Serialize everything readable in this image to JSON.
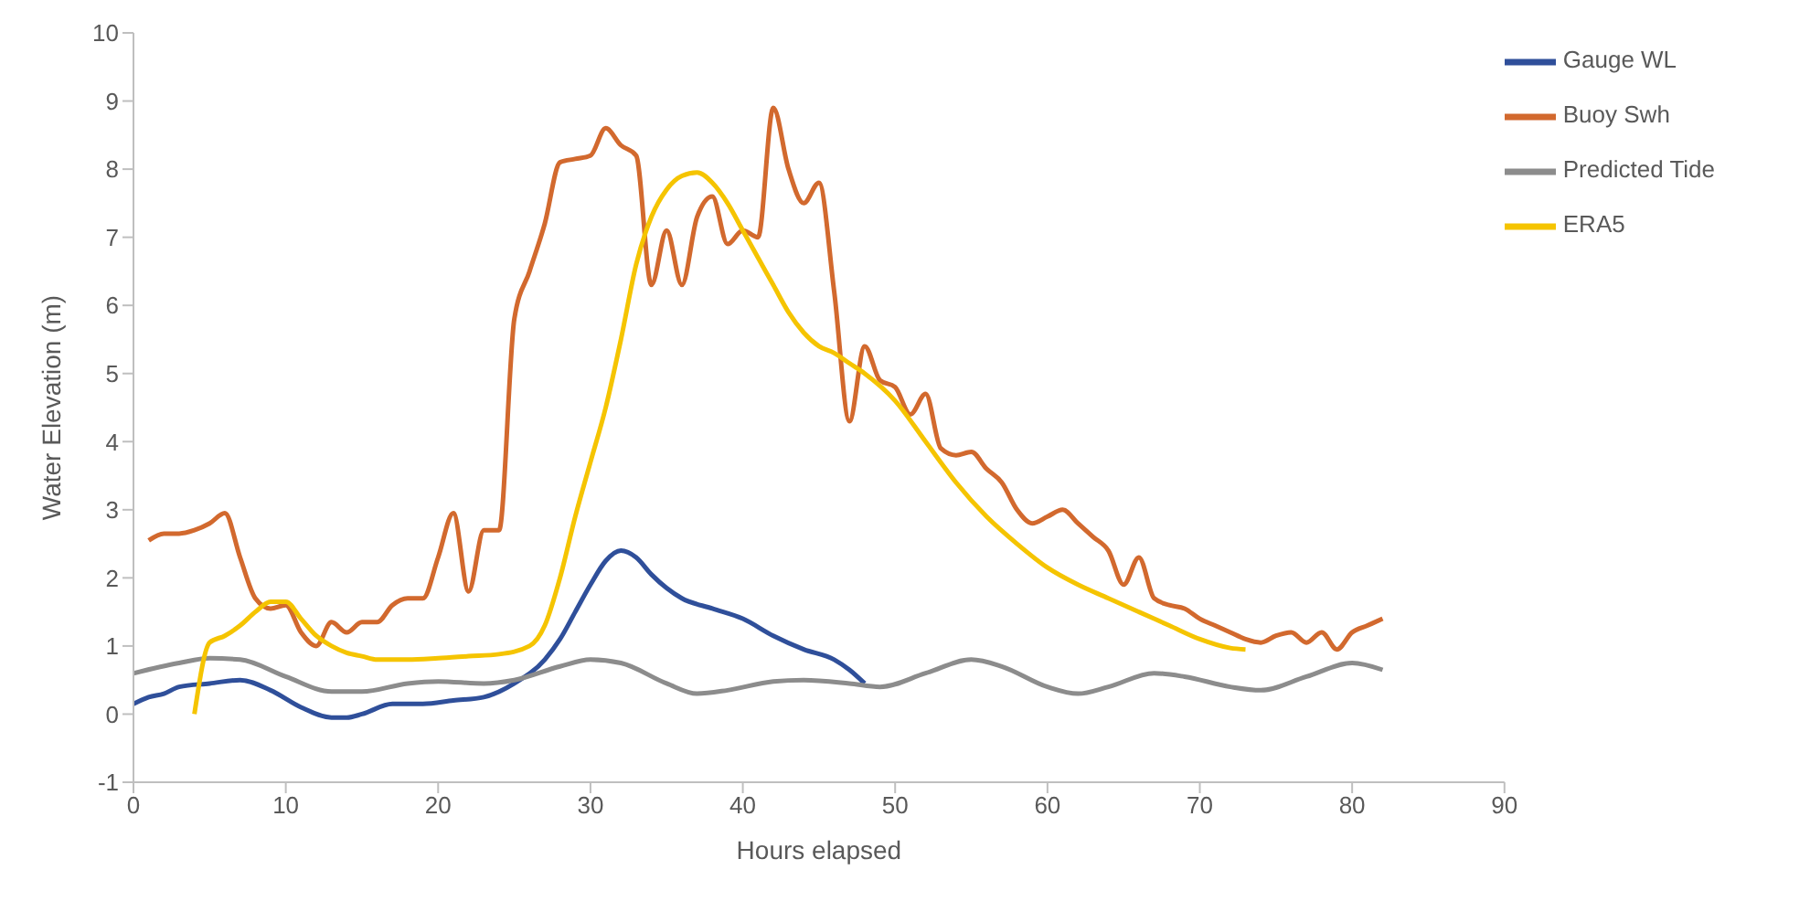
{
  "chart_data": {
    "type": "line",
    "xlabel": "Hours elapsed",
    "ylabel": "Water Elevation (m)",
    "xlim": [
      0,
      90
    ],
    "xticks": [
      0,
      10,
      20,
      30,
      40,
      50,
      60,
      70,
      80,
      90
    ],
    "ylim": [
      -1,
      10
    ],
    "yticks": [
      -1,
      0,
      1,
      2,
      3,
      4,
      5,
      6,
      7,
      8,
      9,
      10
    ],
    "grid": false,
    "legend": "top right",
    "marker": "none",
    "line_style": "solid",
    "series": [
      {
        "name": "Gauge WL",
        "color": "#2f4f9a",
        "x": [
          0,
          1,
          2,
          3,
          5,
          7,
          9,
          11,
          13,
          14,
          15,
          17,
          19,
          21,
          23,
          25,
          27,
          28,
          29,
          30,
          31,
          32,
          33,
          34,
          35,
          36,
          38,
          40,
          42,
          44,
          46,
          47,
          48
        ],
        "values": [
          0.15,
          0.25,
          0.3,
          0.4,
          0.45,
          0.5,
          0.35,
          0.1,
          -0.05,
          -0.05,
          0,
          0.15,
          0.15,
          0.2,
          0.25,
          0.45,
          0.8,
          1.1,
          1.5,
          1.9,
          2.25,
          2.4,
          2.3,
          2.05,
          1.85,
          1.7,
          1.55,
          1.4,
          1.15,
          0.95,
          0.8,
          0.65,
          0.45
        ]
      },
      {
        "name": "Buoy Swh",
        "color": "#d2692e",
        "x": [
          1,
          2,
          3,
          4,
          5,
          6,
          7,
          8,
          9,
          10,
          11,
          12,
          13,
          14,
          15,
          16,
          17,
          18,
          19,
          20,
          21,
          22,
          23,
          24,
          25,
          26,
          27,
          28,
          29,
          30,
          31,
          32,
          33,
          34,
          35,
          36,
          37,
          38,
          39,
          40,
          41,
          42,
          43,
          44,
          45,
          46,
          47,
          48,
          49,
          50,
          51,
          52,
          53,
          54,
          55,
          56,
          57,
          58,
          59,
          60,
          61,
          62,
          63,
          64,
          65,
          66,
          67,
          68,
          69,
          70,
          71,
          72,
          73,
          74,
          75,
          76,
          77,
          78,
          79,
          80,
          81,
          82
        ],
        "values": [
          2.55,
          2.65,
          2.65,
          2.7,
          2.8,
          2.95,
          2.3,
          1.7,
          1.55,
          1.6,
          1.2,
          1.0,
          1.35,
          1.2,
          1.35,
          1.35,
          1.6,
          1.7,
          1.7,
          2.3,
          2.95,
          1.8,
          2.7,
          2.7,
          5.8,
          6.5,
          7.2,
          8.1,
          8.15,
          8.2,
          8.6,
          8.35,
          8.2,
          6.3,
          7.1,
          6.3,
          7.3,
          7.6,
          6.9,
          7.1,
          7.0,
          8.9,
          8.0,
          7.5,
          7.8,
          6.2,
          4.3,
          5.4,
          4.9,
          4.8,
          4.4,
          4.7,
          3.9,
          3.8,
          3.85,
          3.6,
          3.4,
          3.0,
          2.8,
          2.9,
          3.0,
          2.8,
          2.6,
          2.4,
          1.9,
          2.3,
          1.7,
          1.6,
          1.55,
          1.4,
          1.3,
          1.2,
          1.1,
          1.05,
          1.15,
          1.2,
          1.05,
          1.2,
          0.95,
          1.2,
          1.3,
          1.4
        ]
      },
      {
        "name": "Predicted Tide",
        "color": "#8c8c8c",
        "x": [
          0,
          3,
          5,
          7,
          10,
          13,
          15,
          18,
          20,
          23,
          25,
          28,
          30,
          32,
          35,
          37,
          39,
          42,
          44,
          47,
          49,
          52,
          55,
          57,
          60,
          62,
          64,
          67,
          69,
          72,
          74,
          77,
          80,
          82
        ],
        "values": [
          0.6,
          0.75,
          0.82,
          0.8,
          0.55,
          0.33,
          0.33,
          0.45,
          0.48,
          0.45,
          0.5,
          0.7,
          0.8,
          0.75,
          0.45,
          0.3,
          0.35,
          0.48,
          0.5,
          0.45,
          0.4,
          0.6,
          0.8,
          0.7,
          0.4,
          0.3,
          0.4,
          0.6,
          0.55,
          0.4,
          0.35,
          0.55,
          0.75,
          0.65
        ]
      },
      {
        "name": "ERA5",
        "color": "#f5c400",
        "x": [
          4,
          5,
          6,
          7,
          8,
          9,
          10,
          11,
          12,
          13,
          14,
          15,
          16,
          18,
          20,
          22,
          24,
          26,
          27,
          28,
          29,
          30,
          31,
          32,
          33,
          34,
          35,
          36,
          37,
          38,
          39,
          40,
          41,
          42,
          43,
          44,
          45,
          46,
          47,
          48,
          50,
          52,
          54,
          56,
          58,
          60,
          62,
          64,
          66,
          68,
          70,
          72,
          73
        ],
        "values": [
          0,
          1.05,
          1.15,
          1.3,
          1.5,
          1.65,
          1.65,
          1.4,
          1.15,
          1.0,
          0.9,
          0.85,
          0.8,
          0.8,
          0.82,
          0.85,
          0.88,
          1.0,
          1.3,
          2.0,
          2.9,
          3.7,
          4.5,
          5.5,
          6.6,
          7.3,
          7.7,
          7.9,
          7.95,
          7.8,
          7.5,
          7.1,
          6.7,
          6.3,
          5.9,
          5.6,
          5.4,
          5.3,
          5.15,
          5.0,
          4.6,
          4.0,
          3.4,
          2.9,
          2.5,
          2.15,
          1.9,
          1.7,
          1.5,
          1.3,
          1.1,
          0.97,
          0.95
        ]
      }
    ]
  }
}
